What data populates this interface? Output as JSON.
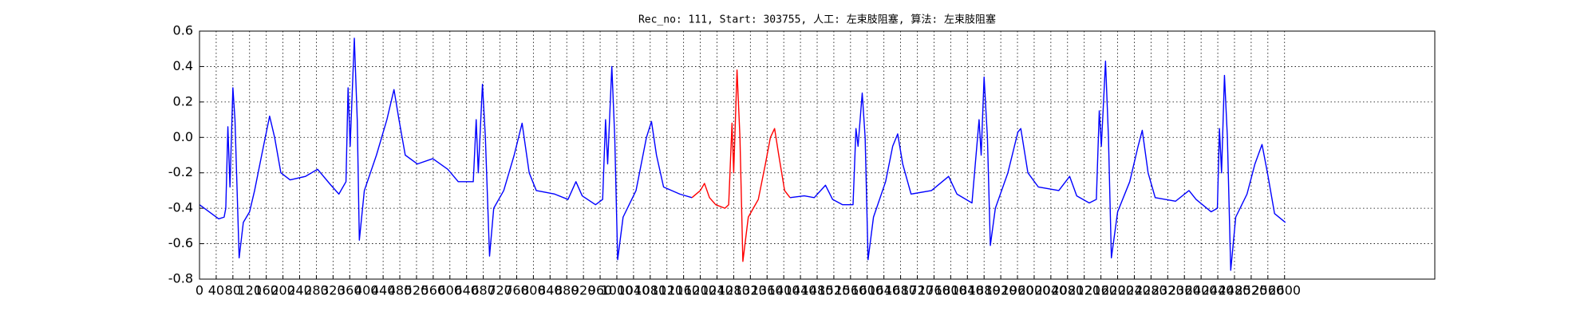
{
  "chart_data": {
    "type": "line",
    "title": "Rec_no: 111, Start: 303755, 人工: 左束肢阻塞, 算法: 左束肢阻塞",
    "xlim": [
      0,
      2960
    ],
    "ylim": [
      -0.8,
      0.6
    ],
    "xticks": [
      0,
      40,
      80,
      120,
      160,
      200,
      240,
      280,
      320,
      360,
      400,
      440,
      480,
      520,
      560,
      600,
      640,
      680,
      720,
      760,
      800,
      840,
      880,
      920,
      960,
      1000,
      1040,
      1080,
      1120,
      1160,
      1200,
      1240,
      1280,
      1320,
      1360,
      1400,
      1440,
      1480,
      1520,
      1560,
      1600,
      1640,
      1680,
      1720,
      1760,
      1800,
      1840,
      1880,
      1920,
      1960,
      2000,
      2040,
      2080,
      2120,
      2160,
      2200,
      2240,
      2280,
      2320,
      2360,
      2400,
      2440,
      2480,
      2520,
      2560,
      2600
    ],
    "yticks": [
      -0.8,
      -0.6,
      -0.4,
      -0.2,
      {
        "value": 0,
        "label": "0.0"
      },
      0.2,
      0.4,
      0.6
    ],
    "grid": true,
    "series": [
      {
        "color": "#0000ff",
        "x": [
          0,
          46,
          59,
          63,
          68,
          73,
          80,
          85,
          95,
          105,
          120,
          132,
          149,
          168,
          180,
          195,
          217,
          254,
          283,
          315,
          334,
          351,
          356,
          361,
          371,
          378,
          383,
          395,
          424,
          449,
          466,
          478,
          493,
          522,
          559,
          595,
          620,
          656,
          663,
          668,
          678,
          685,
          695,
          705,
          729,
          754,
          773,
          790,
          807,
          851,
          883,
          902,
          917,
          949,
          966,
          973,
          978,
          988,
          995,
          1002,
          1015,
          1046,
          1071,
          1083,
          1095,
          1112,
          1151,
          1180,
          1200,
          1210,
          1222,
          1237,
          1259,
          1268,
          1276,
          1280,
          1288,
          1295,
          1302,
          1315,
          1339,
          1356,
          1368,
          1378,
          1388,
          1402,
          1415,
          1449,
          1473,
          1500,
          1517,
          1541,
          1566,
          1573,
          1578,
          1588,
          1595,
          1602,
          1615,
          1644,
          1661,
          1673,
          1685,
          1705,
          1754,
          1795,
          1815,
          1851,
          1868,
          1873,
          1880,
          1888,
          1895,
          1907,
          1937,
          1961,
          1968,
          1985,
          2010,
          2059,
          2085,
          2102,
          2132,
          2149,
          2156,
          2161,
          2171,
          2178,
          2185,
          2200,
          2229,
          2249,
          2259,
          2273,
          2290,
          2339,
          2371,
          2388,
          2424,
          2439,
          2444,
          2449,
          2456,
          2463,
          2471,
          2483,
          2510,
          2529,
          2546,
          2559,
          2576,
          2602
        ],
        "values": [
          -0.38,
          -0.46,
          -0.45,
          -0.4,
          0.06,
          -0.28,
          0.28,
          0.1,
          -0.68,
          -0.48,
          -0.42,
          -0.3,
          -0.1,
          0.12,
          0.0,
          -0.2,
          -0.24,
          -0.22,
          -0.18,
          -0.27,
          -0.32,
          -0.25,
          0.28,
          -0.05,
          0.56,
          0.1,
          -0.58,
          -0.3,
          -0.1,
          0.1,
          0.27,
          0.1,
          -0.1,
          -0.15,
          -0.12,
          -0.18,
          -0.25,
          -0.25,
          0.1,
          -0.2,
          0.3,
          0.0,
          -0.67,
          -0.4,
          -0.3,
          -0.1,
          0.08,
          -0.2,
          -0.3,
          -0.32,
          -0.35,
          -0.25,
          -0.33,
          -0.38,
          -0.35,
          0.1,
          -0.15,
          0.4,
          0.0,
          -0.69,
          -0.45,
          -0.3,
          0.0,
          0.09,
          -0.1,
          -0.28,
          -0.32,
          -0.34,
          null,
          null,
          null,
          null,
          null,
          null,
          null,
          null,
          null,
          null,
          null,
          null,
          null,
          null,
          null,
          null,
          null,
          null,
          -0.34,
          -0.33,
          -0.34,
          -0.27,
          -0.35,
          -0.38,
          -0.38,
          0.05,
          -0.05,
          0.25,
          0.0,
          -0.69,
          -0.45,
          -0.25,
          -0.05,
          0.02,
          -0.15,
          -0.32,
          -0.3,
          -0.22,
          -0.32,
          -0.37,
          0.1,
          -0.1,
          0.34,
          0.0,
          -0.61,
          -0.4,
          -0.2,
          0.03,
          0.05,
          -0.2,
          -0.28,
          -0.3,
          -0.22,
          -0.33,
          -0.37,
          -0.35,
          0.15,
          -0.05,
          0.43,
          0.0,
          -0.68,
          -0.42,
          -0.25,
          -0.05,
          0.04,
          -0.2,
          -0.34,
          -0.36,
          -0.3,
          -0.35,
          -0.42,
          -0.4,
          0.05,
          -0.2,
          0.35,
          0.0,
          -0.75,
          -0.45,
          -0.32,
          -0.15,
          -0.04,
          -0.2,
          -0.43,
          -0.48
        ]
      },
      {
        "color": "#ff0000",
        "x": [
          1180,
          1200,
          1210,
          1222,
          1237,
          1259,
          1268,
          1276,
          1280,
          1288,
          1295,
          1302,
          1315,
          1339,
          1356,
          1368,
          1378,
          1388,
          1402,
          1415
        ],
        "values": [
          -0.34,
          -0.3,
          -0.26,
          -0.34,
          -0.38,
          -0.4,
          -0.38,
          0.08,
          -0.2,
          0.38,
          0.0,
          -0.7,
          -0.45,
          -0.35,
          -0.15,
          0.0,
          0.05,
          -0.1,
          -0.3,
          -0.34
        ]
      }
    ]
  }
}
